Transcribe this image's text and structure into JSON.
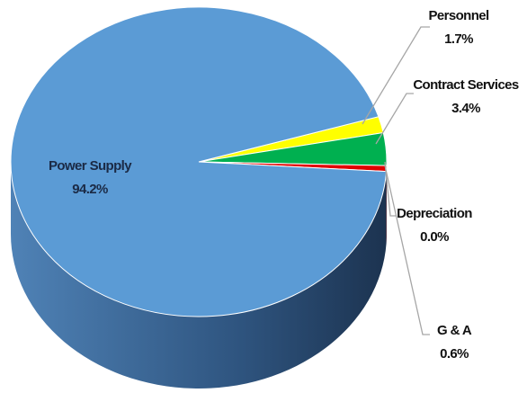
{
  "chart_data": {
    "type": "pie",
    "categories": [
      "Personnel",
      "Contract Services",
      "G & A",
      "Depreciation",
      "Power Supply"
    ],
    "values": [
      1.7,
      3.4,
      0.6,
      0.0,
      94.2
    ],
    "value_labels": [
      "1.7%",
      "3.4%",
      "0.6%",
      "0.0%",
      "94.2%"
    ],
    "colors": [
      "#ffff00",
      "#00b050",
      "#e00000",
      "#7f7f7f",
      "#5b9bd5"
    ]
  }
}
